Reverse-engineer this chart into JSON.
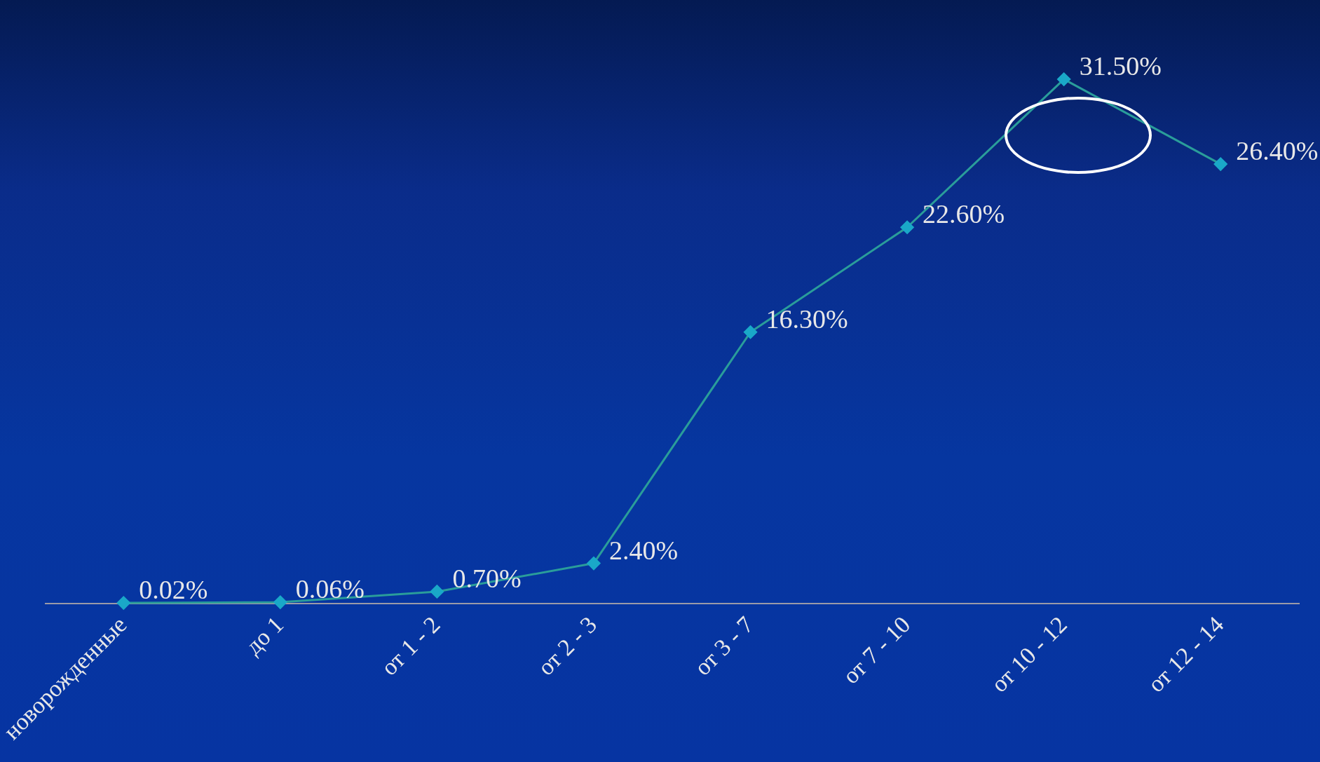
{
  "chart_data": {
    "type": "line",
    "categories": [
      "новорожденные",
      "до 1",
      "от 1 - 2",
      "от 2 - 3",
      "от 3 - 7",
      "от 7 - 10",
      "от 10 - 12",
      "от 12 - 14"
    ],
    "series": [
      {
        "color": "#2a9d9a",
        "values": [
          0.02,
          0.06,
          0.7,
          2.4,
          16.3,
          22.6,
          31.5,
          26.4
        ],
        "value_labels": [
          "0.02%",
          "0.06%",
          "0.70%",
          "2.40%",
          "16.30%",
          "22.60%",
          "31.50%",
          "26.40%"
        ]
      }
    ],
    "marker": "diamond",
    "grid": false,
    "legend": false
  }
}
